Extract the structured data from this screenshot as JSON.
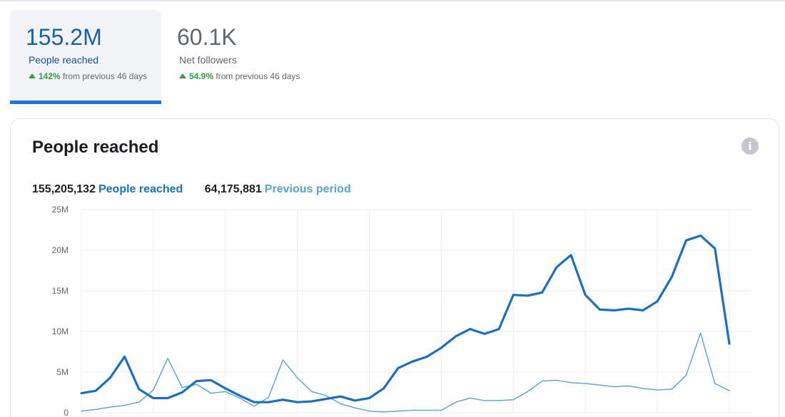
{
  "kpis": [
    {
      "value": "155.2M",
      "label": "People reached",
      "delta_pct": "142%",
      "delta_text": "from previous 46 days"
    },
    {
      "value": "60.1K",
      "label": "Net followers",
      "delta_pct": "54.9%",
      "delta_text": "from previous 46 days"
    }
  ],
  "card": {
    "title": "People reached",
    "total": "155,205,132",
    "series_label": "People reached",
    "previous_total": "64,175,881",
    "previous_label": "Previous period"
  },
  "colors": {
    "accent": "#1b74e4",
    "series_current": "#1b6fc2",
    "series_previous": "#5aa2cf",
    "up": "#2e9e41"
  },
  "chart_data": {
    "type": "line",
    "title": "People reached",
    "xlabel": "",
    "ylabel": "",
    "ylim": [
      0,
      25000000
    ],
    "yticks": [
      0,
      5000000,
      10000000,
      15000000,
      20000000,
      25000000
    ],
    "ytick_labels": [
      "0",
      "5M",
      "10M",
      "15M",
      "20M",
      "25M"
    ],
    "x": [
      1,
      2,
      3,
      4,
      5,
      6,
      7,
      8,
      9,
      10,
      11,
      12,
      13,
      14,
      15,
      16,
      17,
      18,
      19,
      20,
      21,
      22,
      23,
      24,
      25,
      26,
      27,
      28,
      29,
      30,
      31,
      32,
      33,
      34,
      35,
      36,
      37,
      38,
      39,
      40,
      41,
      42,
      43,
      44,
      45,
      46
    ],
    "series": [
      {
        "name": "People reached",
        "values": [
          2400000,
          2700000,
          4300000,
          6900000,
          2900000,
          1800000,
          1800000,
          2500000,
          3900000,
          4000000,
          3000000,
          2100000,
          1300000,
          1300000,
          1600000,
          1300000,
          1400000,
          1700000,
          2000000,
          1500000,
          1800000,
          3000000,
          5500000,
          6300000,
          6900000,
          8000000,
          9400000,
          10300000,
          9700000,
          10300000,
          14500000,
          14400000,
          14800000,
          17900000,
          19400000,
          14500000,
          12700000,
          12600000,
          12800000,
          12600000,
          13700000,
          16700000,
          21200000,
          21800000,
          20200000,
          8500000
        ]
      },
      {
        "name": "Previous period",
        "values": [
          200000,
          400000,
          700000,
          900000,
          1300000,
          2800000,
          6700000,
          3100000,
          3500000,
          2400000,
          2600000,
          1800000,
          800000,
          1900000,
          6500000,
          4300000,
          2600000,
          2100000,
          1100000,
          600000,
          200000,
          100000,
          200000,
          300000,
          300000,
          300000,
          1300000,
          1800000,
          1500000,
          1500000,
          1600000,
          2600000,
          3900000,
          4000000,
          3700000,
          3600000,
          3400000,
          3200000,
          3300000,
          3000000,
          2800000,
          2900000,
          4600000,
          9800000,
          3600000,
          2700000
        ]
      }
    ]
  }
}
